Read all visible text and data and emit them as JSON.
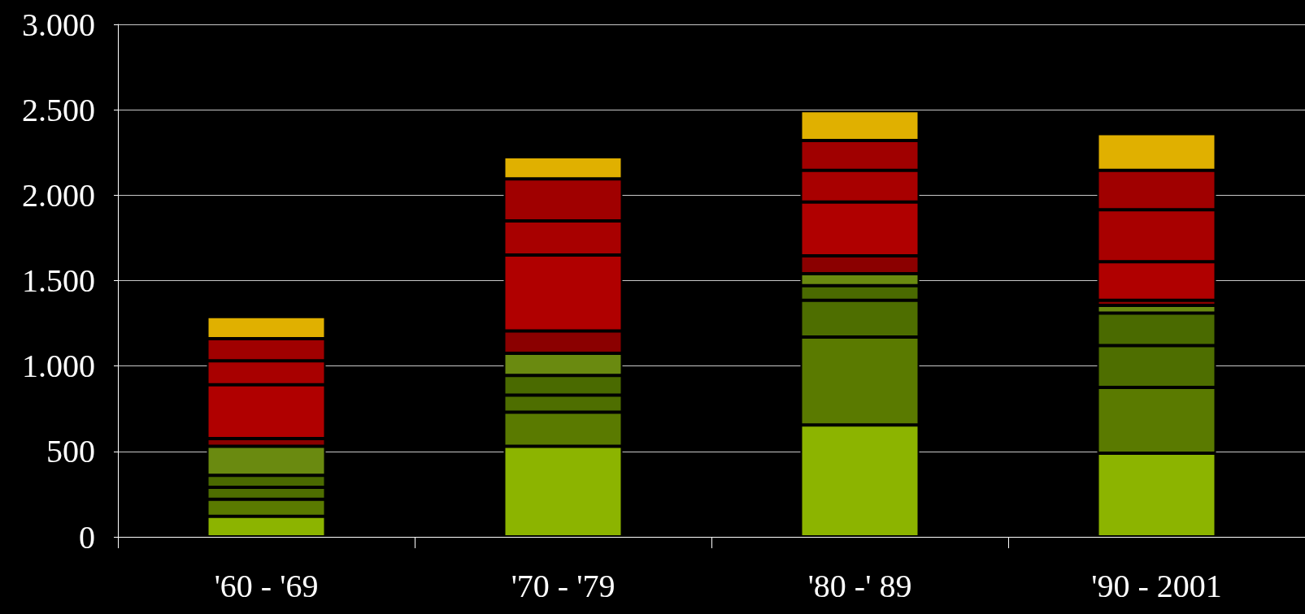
{
  "chart_data": {
    "type": "bar",
    "stacked": true,
    "categories": [
      "'60 - '69",
      "'70 - '79",
      "'80 -' 89",
      "'90 - 2001"
    ],
    "series": [
      {
        "color": "#8cb400",
        "values": [
          120,
          530,
          655,
          490
        ]
      },
      {
        "color": "#5a7a00",
        "values": [
          100,
          200,
          515,
          385
        ]
      },
      {
        "color": "#4e6e00",
        "values": [
          70,
          100,
          215,
          245
        ]
      },
      {
        "color": "#4a6a00",
        "values": [
          70,
          115,
          85,
          190
        ]
      },
      {
        "color": "#6a8a10",
        "values": [
          170,
          130,
          70,
          45
        ]
      },
      {
        "color": "#8b0000",
        "values": [
          45,
          130,
          105,
          30
        ]
      },
      {
        "color": "#b00000",
        "values": [
          315,
          445,
          315,
          225
        ]
      },
      {
        "color": "#a80000",
        "values": [
          140,
          200,
          185,
          305
        ]
      },
      {
        "color": "#a00000",
        "values": [
          130,
          245,
          175,
          230
        ]
      },
      {
        "color": "#e0b000",
        "values": [
          130,
          130,
          175,
          215
        ]
      }
    ],
    "ylim": [
      0,
      3000
    ],
    "yticks": [
      {
        "value": 0,
        "label": "0"
      },
      {
        "value": 500,
        "label": "500"
      },
      {
        "value": 1000,
        "label": "1.000"
      },
      {
        "value": 1500,
        "label": "1.500"
      },
      {
        "value": 2000,
        "label": "2.000"
      },
      {
        "value": 2500,
        "label": "2.500"
      },
      {
        "value": 3000,
        "label": "3.000"
      }
    ],
    "grid": "y"
  }
}
